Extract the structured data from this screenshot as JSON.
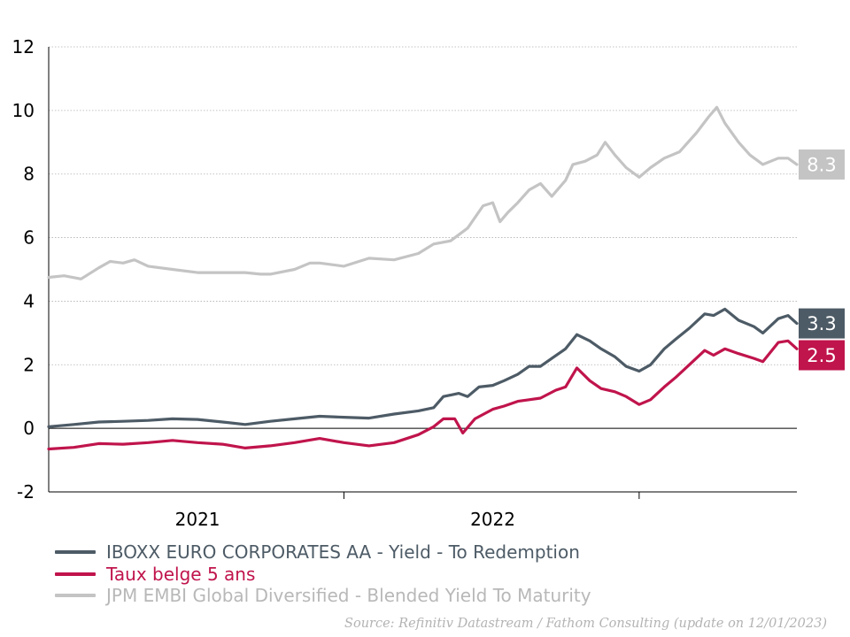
{
  "chart_data": {
    "type": "line",
    "title": "",
    "xlabel": "",
    "ylabel": "",
    "ylim": [
      -2,
      12
    ],
    "yticks": [
      -2,
      0,
      2,
      4,
      6,
      8,
      10,
      12
    ],
    "xlim": [
      "2020-07-01",
      "2023-01-12"
    ],
    "xticks": [
      {
        "label": "2021",
        "at": "2021-01-01"
      },
      {
        "label": "2022",
        "at": "2022-01-01"
      }
    ],
    "x_separators": [
      "2021-07-01",
      "2022-07-01"
    ],
    "grid": "horizontal dotted",
    "legend_placement": "bottom",
    "series": [
      {
        "name": "IBOXX EURO CORPORATES AA - Yield - To Redemption",
        "color": "#4d5b66",
        "end_label": "3.3",
        "points": [
          [
            "2020-07-01",
            0.05
          ],
          [
            "2020-08-01",
            0.12
          ],
          [
            "2020-09-01",
            0.2
          ],
          [
            "2020-10-01",
            0.22
          ],
          [
            "2020-11-01",
            0.25
          ],
          [
            "2020-12-01",
            0.3
          ],
          [
            "2021-01-01",
            0.28
          ],
          [
            "2021-02-01",
            0.2
          ],
          [
            "2021-03-01",
            0.12
          ],
          [
            "2021-04-01",
            0.22
          ],
          [
            "2021-05-01",
            0.3
          ],
          [
            "2021-06-01",
            0.38
          ],
          [
            "2021-07-01",
            0.35
          ],
          [
            "2021-08-01",
            0.32
          ],
          [
            "2021-09-01",
            0.45
          ],
          [
            "2021-10-01",
            0.55
          ],
          [
            "2021-10-20",
            0.65
          ],
          [
            "2021-11-01",
            1.0
          ],
          [
            "2021-11-20",
            1.1
          ],
          [
            "2021-12-01",
            1.0
          ],
          [
            "2021-12-15",
            1.3
          ],
          [
            "2022-01-01",
            1.35
          ],
          [
            "2022-01-15",
            1.5
          ],
          [
            "2022-02-01",
            1.7
          ],
          [
            "2022-02-15",
            1.95
          ],
          [
            "2022-03-01",
            1.95
          ],
          [
            "2022-03-15",
            2.2
          ],
          [
            "2022-04-01",
            2.5
          ],
          [
            "2022-04-15",
            2.95
          ],
          [
            "2022-05-01",
            2.75
          ],
          [
            "2022-05-15",
            2.5
          ],
          [
            "2022-06-01",
            2.25
          ],
          [
            "2022-06-15",
            1.95
          ],
          [
            "2022-07-01",
            1.8
          ],
          [
            "2022-07-15",
            2.0
          ],
          [
            "2022-08-01",
            2.5
          ],
          [
            "2022-08-15",
            2.8
          ],
          [
            "2022-09-01",
            3.15
          ],
          [
            "2022-09-20",
            3.6
          ],
          [
            "2022-10-01",
            3.55
          ],
          [
            "2022-10-15",
            3.75
          ],
          [
            "2022-11-01",
            3.4
          ],
          [
            "2022-11-20",
            3.2
          ],
          [
            "2022-12-01",
            3.0
          ],
          [
            "2022-12-20",
            3.45
          ],
          [
            "2023-01-01",
            3.55
          ],
          [
            "2023-01-12",
            3.3
          ]
        ]
      },
      {
        "name": "Taux belge 5 ans",
        "color": "#c0144c",
        "end_label": "2.5",
        "points": [
          [
            "2020-07-01",
            -0.65
          ],
          [
            "2020-08-01",
            -0.6
          ],
          [
            "2020-09-01",
            -0.48
          ],
          [
            "2020-10-01",
            -0.5
          ],
          [
            "2020-11-01",
            -0.45
          ],
          [
            "2020-12-01",
            -0.38
          ],
          [
            "2021-01-01",
            -0.45
          ],
          [
            "2021-02-01",
            -0.5
          ],
          [
            "2021-03-01",
            -0.62
          ],
          [
            "2021-04-01",
            -0.55
          ],
          [
            "2021-05-01",
            -0.45
          ],
          [
            "2021-06-01",
            -0.32
          ],
          [
            "2021-07-01",
            -0.45
          ],
          [
            "2021-08-01",
            -0.55
          ],
          [
            "2021-09-01",
            -0.45
          ],
          [
            "2021-10-01",
            -0.2
          ],
          [
            "2021-10-20",
            0.05
          ],
          [
            "2021-11-01",
            0.3
          ],
          [
            "2021-11-15",
            0.3
          ],
          [
            "2021-11-25",
            -0.15
          ],
          [
            "2021-12-10",
            0.3
          ],
          [
            "2022-01-01",
            0.6
          ],
          [
            "2022-01-15",
            0.7
          ],
          [
            "2022-02-01",
            0.85
          ],
          [
            "2022-02-15",
            0.9
          ],
          [
            "2022-03-01",
            0.95
          ],
          [
            "2022-03-20",
            1.2
          ],
          [
            "2022-04-01",
            1.3
          ],
          [
            "2022-04-15",
            1.9
          ],
          [
            "2022-05-01",
            1.5
          ],
          [
            "2022-05-15",
            1.25
          ],
          [
            "2022-06-01",
            1.15
          ],
          [
            "2022-06-15",
            1.0
          ],
          [
            "2022-07-01",
            0.75
          ],
          [
            "2022-07-15",
            0.9
          ],
          [
            "2022-08-01",
            1.3
          ],
          [
            "2022-08-15",
            1.6
          ],
          [
            "2022-09-01",
            2.0
          ],
          [
            "2022-09-20",
            2.45
          ],
          [
            "2022-10-01",
            2.3
          ],
          [
            "2022-10-15",
            2.5
          ],
          [
            "2022-11-01",
            2.35
          ],
          [
            "2022-11-20",
            2.2
          ],
          [
            "2022-12-01",
            2.1
          ],
          [
            "2022-12-20",
            2.7
          ],
          [
            "2023-01-01",
            2.75
          ],
          [
            "2023-01-12",
            2.5
          ]
        ]
      },
      {
        "name": "JPM EMBI Global Diversified - Blended Yield To Maturity",
        "color": "#c4c4c4",
        "end_label": "8.3",
        "points": [
          [
            "2020-07-01",
            4.75
          ],
          [
            "2020-07-20",
            4.8
          ],
          [
            "2020-08-10",
            4.7
          ],
          [
            "2020-09-01",
            5.05
          ],
          [
            "2020-09-15",
            5.25
          ],
          [
            "2020-10-01",
            5.2
          ],
          [
            "2020-10-15",
            5.3
          ],
          [
            "2020-11-01",
            5.1
          ],
          [
            "2020-12-01",
            5.0
          ],
          [
            "2021-01-01",
            4.9
          ],
          [
            "2021-02-01",
            4.9
          ],
          [
            "2021-03-01",
            4.9
          ],
          [
            "2021-03-20",
            4.85
          ],
          [
            "2021-04-01",
            4.85
          ],
          [
            "2021-05-01",
            5.0
          ],
          [
            "2021-05-20",
            5.2
          ],
          [
            "2021-06-01",
            5.2
          ],
          [
            "2021-07-01",
            5.1
          ],
          [
            "2021-08-01",
            5.35
          ],
          [
            "2021-09-01",
            5.3
          ],
          [
            "2021-10-01",
            5.5
          ],
          [
            "2021-10-20",
            5.8
          ],
          [
            "2021-11-10",
            5.9
          ],
          [
            "2021-12-01",
            6.3
          ],
          [
            "2021-12-20",
            7.0
          ],
          [
            "2022-01-01",
            7.1
          ],
          [
            "2022-01-10",
            6.5
          ],
          [
            "2022-01-20",
            6.8
          ],
          [
            "2022-02-01",
            7.1
          ],
          [
            "2022-02-15",
            7.5
          ],
          [
            "2022-03-01",
            7.7
          ],
          [
            "2022-03-15",
            7.3
          ],
          [
            "2022-04-01",
            7.8
          ],
          [
            "2022-04-10",
            8.3
          ],
          [
            "2022-04-25",
            8.4
          ],
          [
            "2022-05-10",
            8.6
          ],
          [
            "2022-05-20",
            9.0
          ],
          [
            "2022-06-01",
            8.6
          ],
          [
            "2022-06-15",
            8.2
          ],
          [
            "2022-07-01",
            7.9
          ],
          [
            "2022-07-15",
            8.2
          ],
          [
            "2022-08-01",
            8.5
          ],
          [
            "2022-08-20",
            8.7
          ],
          [
            "2022-09-10",
            9.3
          ],
          [
            "2022-09-25",
            9.8
          ],
          [
            "2022-10-05",
            10.1
          ],
          [
            "2022-10-15",
            9.6
          ],
          [
            "2022-11-01",
            9.0
          ],
          [
            "2022-11-15",
            8.6
          ],
          [
            "2022-12-01",
            8.3
          ],
          [
            "2022-12-20",
            8.5
          ],
          [
            "2023-01-01",
            8.5
          ],
          [
            "2023-01-12",
            8.3
          ]
        ]
      }
    ]
  },
  "source": "Source: Refinitiv Datastream / Fathom Consulting (update on 12/01/2023)"
}
